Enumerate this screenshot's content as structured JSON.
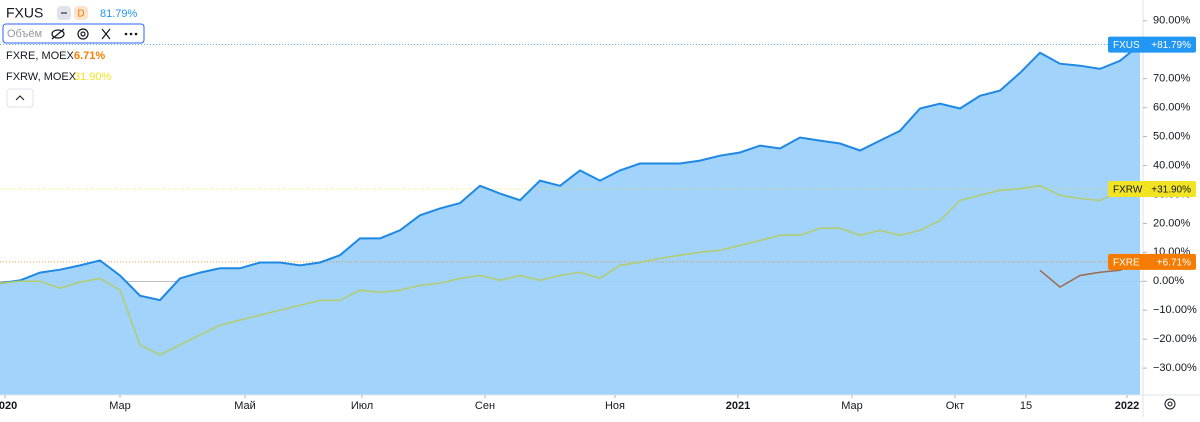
{
  "chart_data": {
    "type": "line",
    "interval": "D",
    "volume_label": "Объём",
    "xlim": [
      0,
      57
    ],
    "ylim": [
      -39.3,
      97.2
    ],
    "x": [
      0,
      1,
      2,
      3,
      4,
      5,
      6,
      7,
      8,
      9,
      10,
      11,
      12,
      13,
      14,
      15,
      16,
      17,
      18,
      19,
      20,
      21,
      22,
      23,
      24,
      25,
      26,
      27,
      28,
      29,
      30,
      31,
      32,
      33,
      34,
      35,
      36,
      37,
      38,
      39,
      40,
      41,
      42,
      43,
      44,
      45,
      46,
      47,
      48,
      49,
      50,
      51,
      52,
      53,
      54,
      55,
      56,
      57
    ],
    "xticks": [
      {
        "value": 0.25,
        "label": "2020"
      },
      {
        "value": 6,
        "label": "Мар"
      },
      {
        "value": 12.25,
        "label": "Май"
      },
      {
        "value": 18.1,
        "label": "Июл"
      },
      {
        "value": 24.25,
        "label": "Сен"
      },
      {
        "value": 30.75,
        "label": "Ноя"
      },
      {
        "value": 36.9,
        "label": "2021"
      },
      {
        "value": 42.6,
        "label": "Мар"
      },
      {
        "value": 47.75,
        "label": "Окт"
      },
      {
        "value": 51.3,
        "label": "15"
      },
      {
        "value": 56.35,
        "label": "2022"
      }
    ],
    "yticks": [
      {
        "value": 90,
        "label": "90.00%"
      },
      {
        "value": 80,
        "label": "80.00%"
      },
      {
        "value": 70,
        "label": "70.00%"
      },
      {
        "value": 60,
        "label": "60.00%"
      },
      {
        "value": 50,
        "label": "50.00%"
      },
      {
        "value": 40,
        "label": "40.00%"
      },
      {
        "value": 30,
        "label": "30.00%"
      },
      {
        "value": 20,
        "label": "20.00%"
      },
      {
        "value": 10,
        "label": "10.00%"
      },
      {
        "value": 0,
        "label": "0.00%"
      },
      {
        "value": -10,
        "label": "−10.00%"
      },
      {
        "value": -20,
        "label": "−20.00%"
      },
      {
        "value": -30,
        "label": "−30.00%"
      }
    ],
    "series": [
      {
        "name": "FXUS",
        "legend_name": "FXUS",
        "last_label": "81.79%",
        "badge_label": "+81.79%",
        "last_value": 81.79,
        "color": "#1e88e5",
        "area_color": "#9dd1fa",
        "label_color": "#2196f3",
        "values": [
          -0.7,
          0.3,
          3,
          4,
          5.5,
          7.2,
          2,
          -5,
          -6.5,
          1,
          3,
          4.5,
          4.5,
          6.5,
          6.5,
          5.5,
          6.5,
          9,
          14.8,
          14.8,
          17.6,
          22.8,
          25.2,
          27,
          33,
          30.3,
          28,
          34.8,
          33,
          38.3,
          34.8,
          38.3,
          40.7,
          40.7,
          40.7,
          41.7,
          43.4,
          44.5,
          46.9,
          45.9,
          49.7,
          48.6,
          47.6,
          45.2,
          48.6,
          52,
          59.7,
          61.4,
          59.7,
          64.1,
          65.9,
          72,
          79,
          75.2,
          74.5,
          73.4,
          76.2,
          81.79
        ]
      },
      {
        "name": "FXRE",
        "legend_name": "FXRE, MOEX",
        "last_label": "6.71%",
        "badge_label": "+6.71%",
        "last_value": 6.71,
        "color": "#9c6b4e",
        "label_color": "#f57c00",
        "values": [
          null,
          null,
          null,
          null,
          null,
          null,
          null,
          null,
          null,
          null,
          null,
          null,
          null,
          null,
          null,
          null,
          null,
          null,
          null,
          null,
          null,
          null,
          null,
          null,
          null,
          null,
          null,
          null,
          null,
          null,
          null,
          null,
          null,
          null,
          null,
          null,
          null,
          null,
          null,
          null,
          null,
          null,
          null,
          null,
          null,
          null,
          null,
          null,
          null,
          null,
          null,
          null,
          3.8,
          -2,
          2,
          3.1,
          3.8,
          6.71
        ]
      },
      {
        "name": "FXRW",
        "legend_name": "FXRW, MOEX",
        "last_label": "31.90%",
        "badge_label": "+31.90%",
        "last_value": 31.9,
        "color": "#b3cc6e",
        "label_color": "#f2e422",
        "values": [
          -0.7,
          0,
          0,
          -2.4,
          -0.3,
          1,
          -3,
          -22,
          -25.5,
          -22,
          -18.6,
          -15.2,
          -13.4,
          -11.7,
          -10,
          -8.3,
          -6.6,
          -6.6,
          -3.1,
          -3.8,
          -3.1,
          -1.4,
          -0.7,
          1,
          2,
          0.3,
          2,
          0.3,
          2,
          3.1,
          1,
          5.5,
          6.6,
          7.9,
          9,
          10,
          10.7,
          12.4,
          14.1,
          15.9,
          15.9,
          18.3,
          18.3,
          15.9,
          17.6,
          15.9,
          17.6,
          21,
          27.9,
          29.7,
          31.4,
          32,
          33.1,
          29.7,
          28.6,
          27.9,
          31.4,
          31.9
        ]
      }
    ]
  }
}
